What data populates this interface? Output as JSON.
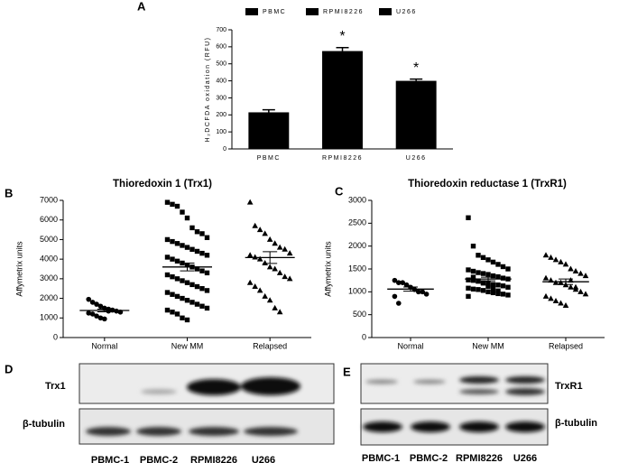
{
  "chart_data": [
    {
      "type": "bar",
      "panel": "A",
      "ylabel": "H₂DCFDA oxidation (RFU)",
      "categories": [
        "PBMC",
        "RPMI8226",
        "U266"
      ],
      "values": [
        215,
        575,
        400
      ],
      "errors": [
        15,
        20,
        10
      ],
      "color": "#000000",
      "legend": true,
      "annotations": [
        null,
        "*",
        "*"
      ],
      "ylim": [
        0,
        700
      ],
      "yticks": [
        0,
        100,
        200,
        300,
        400,
        500,
        600,
        700
      ]
    },
    {
      "type": "dot",
      "panel": "B",
      "title": "Thioredoxin 1 (Trx1)",
      "ylabel": "Affymetrix units",
      "categories": [
        "Normal",
        "New MM",
        "Relapsed"
      ],
      "ylim": [
        0,
        7000
      ],
      "yticks": [
        0,
        1000,
        2000,
        3000,
        4000,
        5000,
        6000,
        7000
      ],
      "color": "#000000",
      "groups": [
        {
          "marker": "circle",
          "mean": 1380,
          "sem": 70,
          "values": [
            1950,
            1800,
            1700,
            1600,
            1500,
            1450,
            1400,
            1350,
            1300,
            1250,
            1200,
            1100,
            1000,
            950,
            1350
          ]
        },
        {
          "marker": "square",
          "mean": 3600,
          "sem": 200,
          "values": [
            6900,
            6800,
            6700,
            6400,
            6100,
            5600,
            5400,
            5300,
            5100,
            5000,
            4900,
            4800,
            4700,
            4600,
            4500,
            4400,
            4300,
            4200,
            4100,
            4000,
            3900,
            3800,
            3700,
            3600,
            3500,
            3400,
            3300,
            3200,
            3100,
            3000,
            2900,
            2800,
            2700,
            2600,
            2500,
            2400,
            2300,
            2200,
            2100,
            2000,
            1900,
            1800,
            1700,
            1600,
            1500,
            1400,
            1300,
            1200,
            1000,
            900
          ]
        },
        {
          "marker": "triangle",
          "mean": 4080,
          "sem": 300,
          "values": [
            6900,
            5700,
            5500,
            5300,
            5000,
            4800,
            4600,
            4500,
            4300,
            4200,
            4100,
            4000,
            3800,
            3600,
            3500,
            3300,
            3100,
            3000,
            2800,
            2600,
            2400,
            2100,
            1900,
            1500,
            1300
          ]
        }
      ]
    },
    {
      "type": "dot",
      "panel": "C",
      "title": "Thioredoxin reductase 1 (TrxR1)",
      "ylabel": "Affymetrix units",
      "categories": [
        "Normal",
        "New MM",
        "Relapsed"
      ],
      "ylim": [
        0,
        3000
      ],
      "yticks": [
        0,
        500,
        1000,
        1500,
        2000,
        2500,
        3000
      ],
      "color": "#000000",
      "groups": [
        {
          "marker": "circle",
          "mean": 1060,
          "sem": 45,
          "values": [
            1250,
            1200,
            1200,
            1150,
            1100,
            1050,
            1000,
            1000,
            950,
            900,
            750
          ]
        },
        {
          "marker": "square",
          "mean": 1280,
          "sem": 40,
          "values": [
            2620,
            2000,
            1800,
            1750,
            1700,
            1650,
            1600,
            1550,
            1500,
            1480,
            1450,
            1420,
            1400,
            1380,
            1350,
            1330,
            1300,
            1280,
            1260,
            1250,
            1230,
            1200,
            1180,
            1160,
            1150,
            1130,
            1100,
            1080,
            1060,
            1050,
            1030,
            1000,
            980,
            960,
            950,
            930,
            900,
            1320,
            1240,
            1190,
            1120,
            1070,
            1020
          ]
        },
        {
          "marker": "triangle",
          "mean": 1220,
          "sem": 60,
          "values": [
            1800,
            1750,
            1700,
            1650,
            1600,
            1500,
            1450,
            1400,
            1350,
            1300,
            1250,
            1200,
            1200,
            1150,
            1100,
            1050,
            1000,
            950,
            900,
            850,
            800,
            750,
            700,
            1250,
            1100
          ]
        }
      ]
    }
  ],
  "blots": [
    {
      "panel": "D",
      "rows": [
        "Trx1",
        "β-tubulin"
      ],
      "lanes": [
        "PBMC-1",
        "PBMC-2",
        "RPMI8226",
        "U266"
      ]
    },
    {
      "panel": "E",
      "rows": [
        "TrxR1",
        "β-tubulin"
      ],
      "lanes": [
        "PBMC-1",
        "PBMC-2",
        "RPMI8226",
        "U266"
      ]
    }
  ]
}
